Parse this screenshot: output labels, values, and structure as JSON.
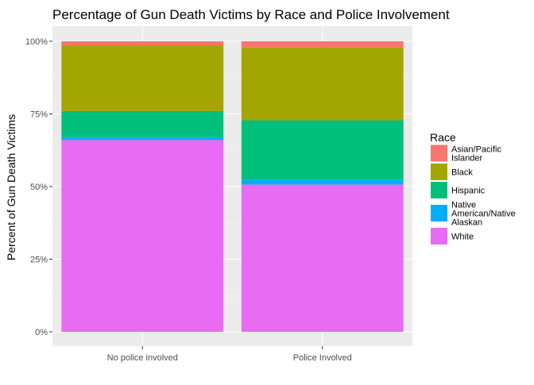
{
  "chart_data": {
    "type": "bar",
    "stacked": true,
    "title": "Percentage of Gun Death Victims by Race and Police Involvement",
    "xlabel": "",
    "ylabel": "Percent of Gun Death Victims",
    "categories": [
      "No police involved",
      "Police Involved"
    ],
    "ylim": [
      0,
      1
    ],
    "yticks": [
      {
        "value": 0,
        "label": "0%"
      },
      {
        "value": 0.25,
        "label": "25%"
      },
      {
        "value": 0.5,
        "label": "50%"
      },
      {
        "value": 0.75,
        "label": "75%"
      },
      {
        "value": 1,
        "label": "100%"
      }
    ],
    "grid": true,
    "legend": {
      "title": "Race",
      "position": "right",
      "entries": [
        {
          "key": "asian",
          "lines": [
            "Asian/Pacific",
            "Islander"
          ]
        },
        {
          "key": "black",
          "lines": [
            "Black"
          ]
        },
        {
          "key": "hispanic",
          "lines": [
            "Hispanic"
          ]
        },
        {
          "key": "native",
          "lines": [
            "Native",
            "American/Native",
            "Alaskan"
          ]
        },
        {
          "key": "white",
          "lines": [
            "White"
          ]
        }
      ]
    },
    "series": [
      {
        "name": "White",
        "key": "white",
        "color": "#E76BF3",
        "values": [
          0.66,
          0.507
        ]
      },
      {
        "name": "Native American/Native Alaskan",
        "key": "native",
        "color": "#00B0F6",
        "values": [
          0.01,
          0.017
        ]
      },
      {
        "name": "Hispanic",
        "key": "hispanic",
        "color": "#00BF7D",
        "values": [
          0.09,
          0.204
        ]
      },
      {
        "name": "Black",
        "key": "black",
        "color": "#A3A500",
        "values": [
          0.225,
          0.251
        ]
      },
      {
        "name": "Asian/Pacific Islander",
        "key": "asian",
        "color": "#F8766D",
        "values": [
          0.015,
          0.021
        ]
      }
    ],
    "colors": {
      "panel_background": "#EBEBEB",
      "grid_major": "#FFFFFF",
      "grid_minor": "#F5F5F5",
      "tick_text": "#4D4D4D",
      "title_text": "#000000"
    }
  }
}
